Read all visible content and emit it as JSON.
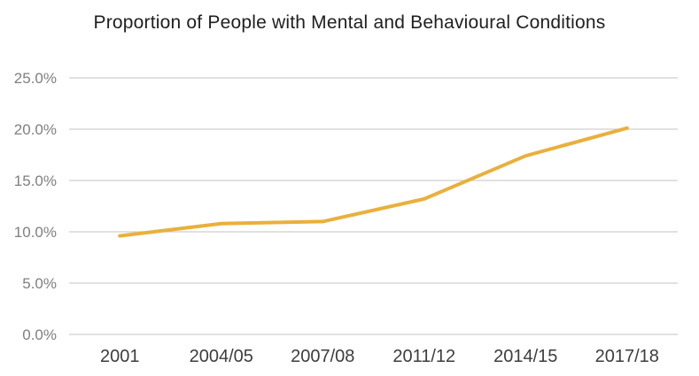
{
  "chart_data": {
    "type": "line",
    "title": "Proportion of People with Mental and Behavioural Conditions",
    "categories": [
      "2001",
      "2004/05",
      "2007/08",
      "2011/12",
      "2014/15",
      "2017/18"
    ],
    "series": [
      {
        "name": "Proportion of people with mental and behavioural conditions",
        "values": [
          9.6,
          10.8,
          11.0,
          13.2,
          17.4,
          20.1
        ]
      }
    ],
    "xlabel": "",
    "ylabel": "",
    "ylim": [
      0,
      25
    ],
    "yticks": [
      {
        "value": 0,
        "label": "0.0%"
      },
      {
        "value": 5,
        "label": "5.0%"
      },
      {
        "value": 10,
        "label": "10.0%"
      },
      {
        "value": 15,
        "label": "15.0%"
      },
      {
        "value": 20,
        "label": "20.0%"
      },
      {
        "value": 25,
        "label": "25.0%"
      }
    ],
    "grid": true,
    "legend_position": "none"
  },
  "colors": {
    "line": "#E9B03C",
    "gridline": "#CFCFCF",
    "y_tick_label": "#7F7F7F",
    "x_tick_label": "#3D3D3D",
    "title": "#1F1F1F",
    "background": "#FFFFFF"
  }
}
